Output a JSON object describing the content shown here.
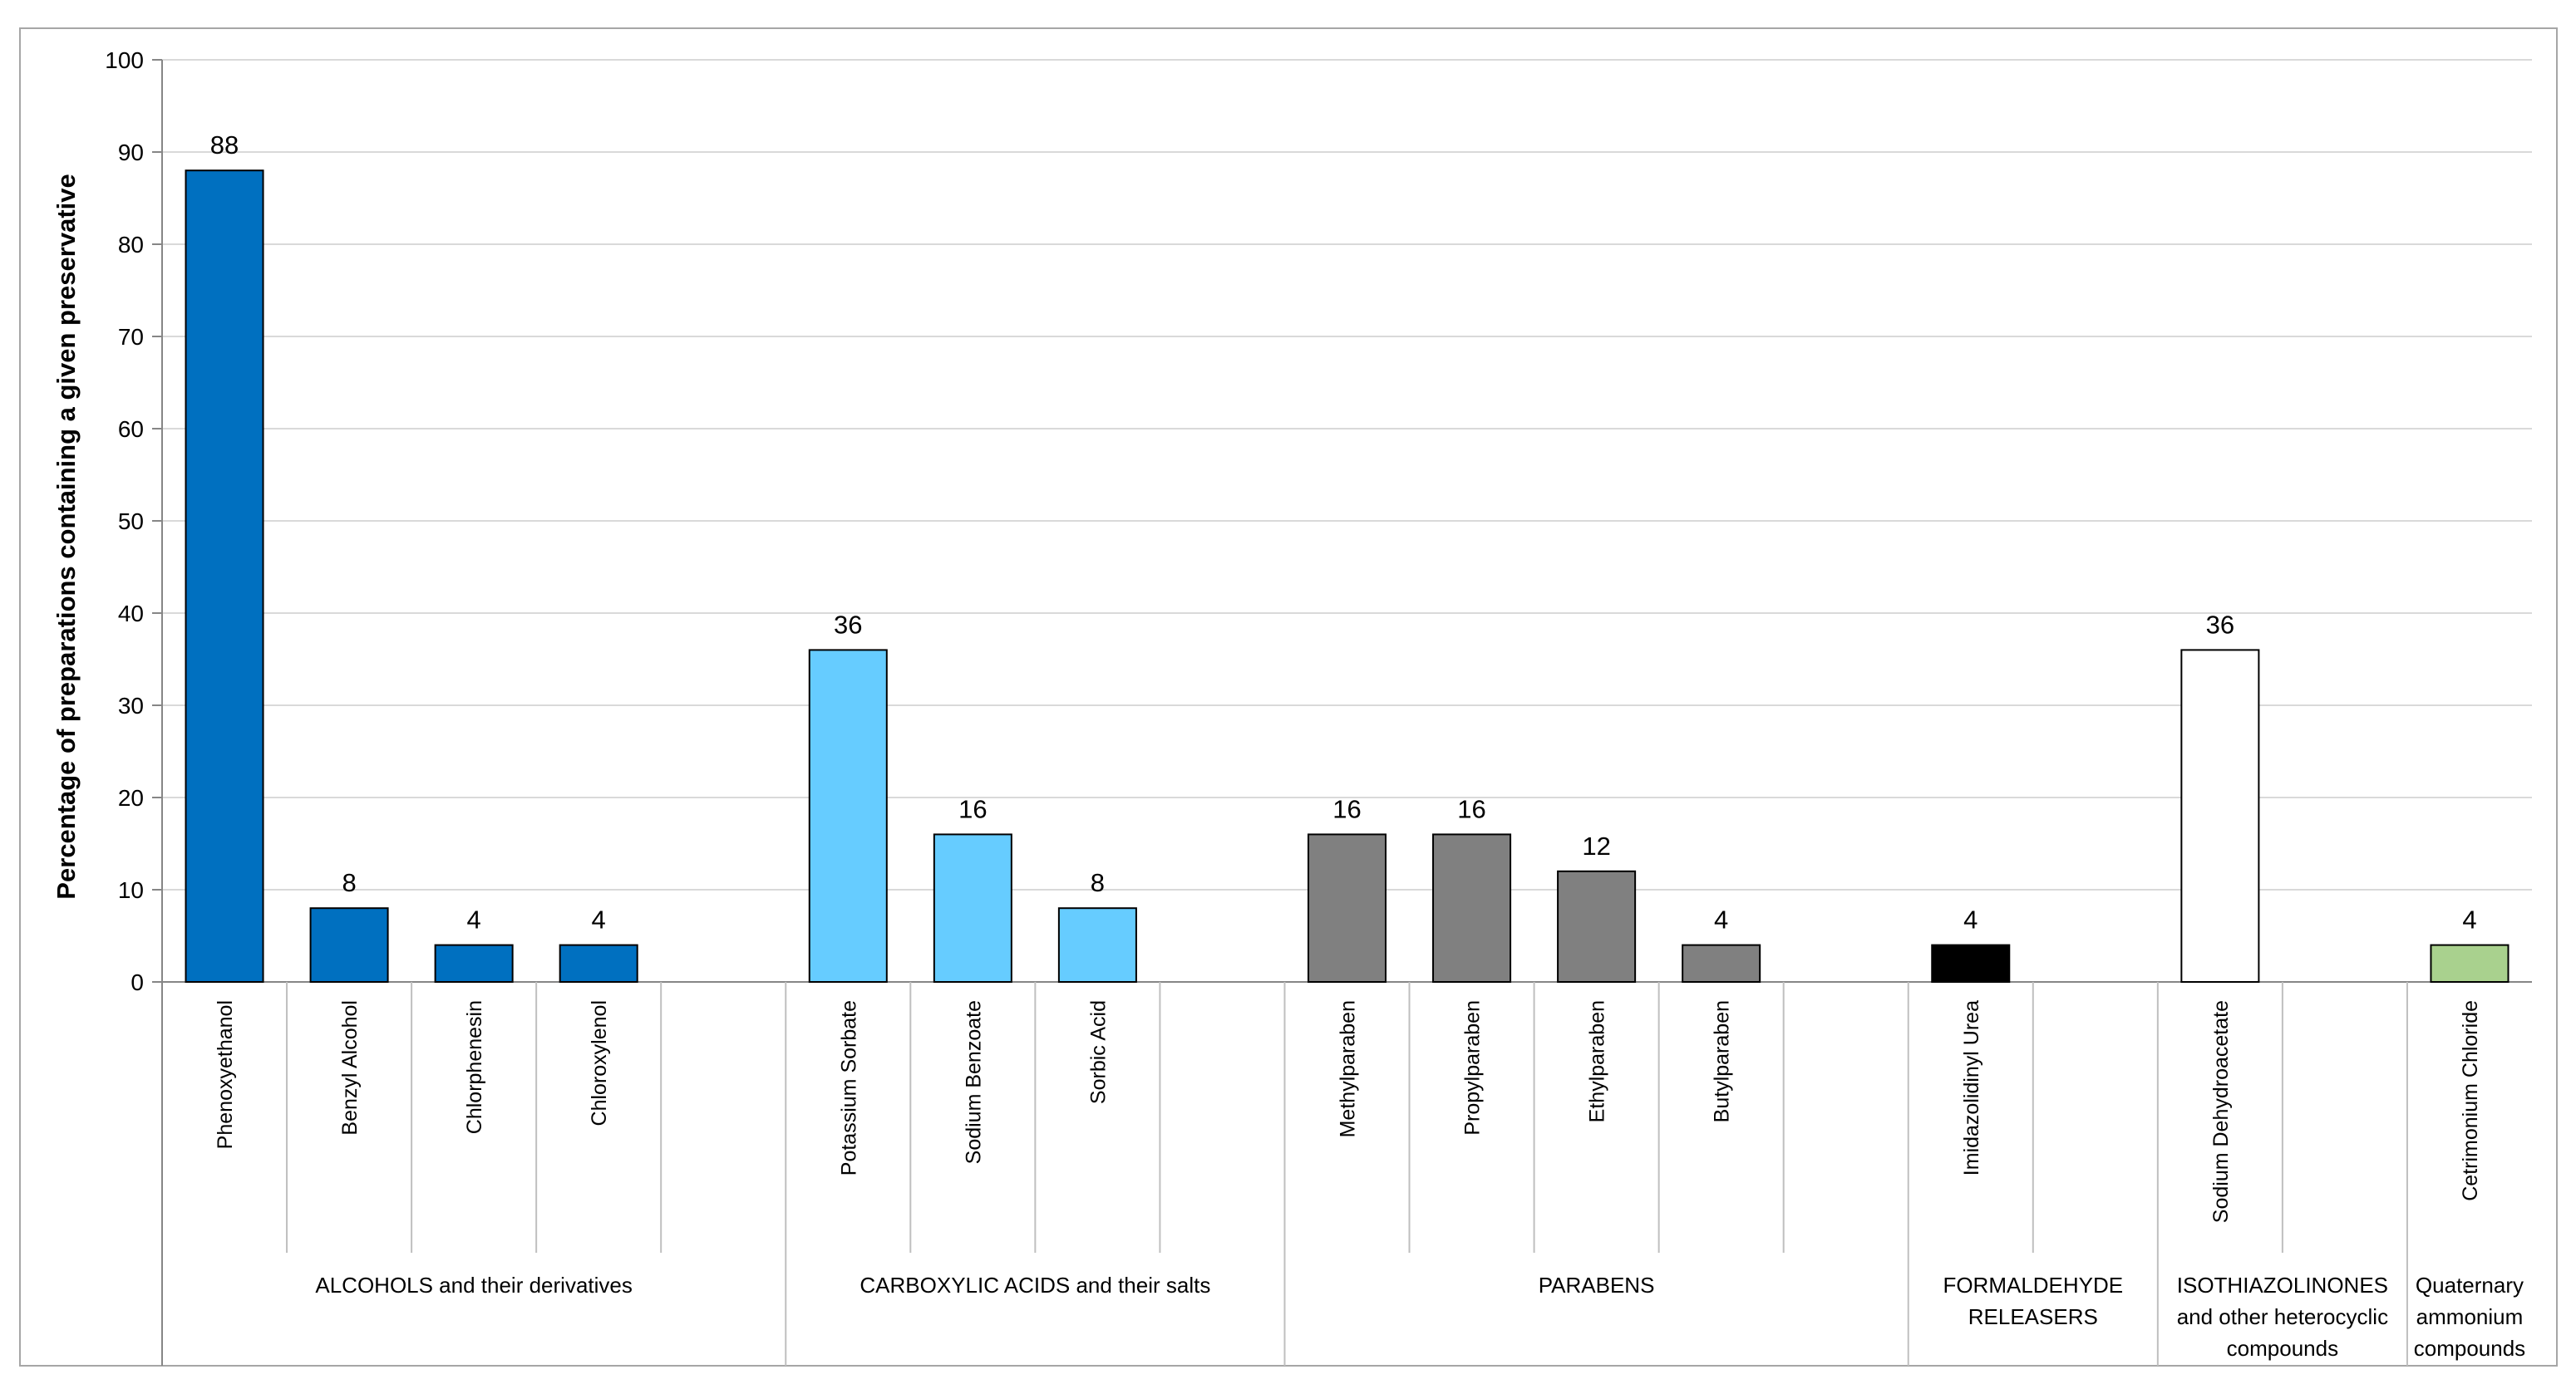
{
  "chart_data": {
    "type": "bar",
    "title": "",
    "xlabel": "",
    "ylabel": "Percentage of preparations containing a given preservative",
    "ylim": [
      0,
      100
    ],
    "yticks": [
      0,
      10,
      20,
      30,
      40,
      50,
      60,
      70,
      80,
      90,
      100
    ],
    "grid": true,
    "categories": [
      "Phenoxyethanol",
      "Benzyl Alcohol",
      "Chlorphenesin",
      "Chloroxylenol",
      "",
      "Potassium Sorbate",
      "Sodium Benzoate",
      "Sorbic Acid",
      "",
      "Methylparaben",
      "Propylparaben",
      "Ethylparaben",
      "Butylparaben",
      "",
      "Imidazolidinyl Urea",
      "",
      "Sodium Dehydroacetate",
      "",
      "Cetrimonium Chloride"
    ],
    "values": [
      88,
      8,
      4,
      4,
      null,
      36,
      16,
      8,
      null,
      16,
      16,
      12,
      4,
      null,
      4,
      null,
      36,
      null,
      4
    ],
    "value_labels": [
      "88",
      "8",
      "4",
      "4",
      "",
      "36",
      "16",
      "8",
      "",
      "16",
      "16",
      "12",
      "4",
      "",
      "4",
      "",
      "36",
      "",
      "4"
    ],
    "groups": [
      {
        "name": "ALCOHOLS and their derivatives",
        "lines": [
          "ALCOHOLS and their derivatives"
        ],
        "start": 0,
        "end": 4,
        "color": "#0070C0"
      },
      {
        "name": "CARBOXYLIC ACIDS and their salts",
        "lines": [
          "CARBOXYLIC ACIDS and their salts"
        ],
        "start": 5,
        "end": 8,
        "color": "#66CCFF"
      },
      {
        "name": "PARABENS",
        "lines": [
          "PARABENS"
        ],
        "start": 9,
        "end": 13,
        "color": "#808080"
      },
      {
        "name": "FORMALDEHYDE RELEASERS",
        "lines": [
          "FORMALDEHYDE",
          "RELEASERS"
        ],
        "start": 14,
        "end": 15,
        "color": "#000000"
      },
      {
        "name": "ISOTHIAZOLINONES and other heterocyclic compounds",
        "lines": [
          "ISOTHIAZOLINONES",
          "and other heterocyclic",
          "compounds"
        ],
        "start": 16,
        "end": 17,
        "color": "#FFFFFF"
      },
      {
        "name": "Quaternary ammonium compounds",
        "lines": [
          "Quaternary",
          "ammonium",
          "compounds"
        ],
        "start": 18,
        "end": 18,
        "color": "#A9D18E"
      }
    ]
  }
}
